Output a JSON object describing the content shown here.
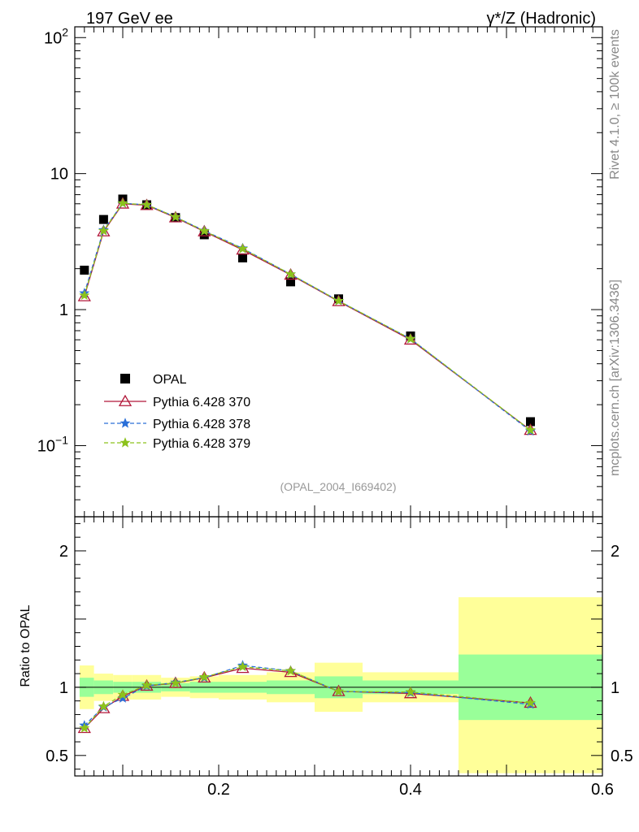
{
  "header": {
    "left": "197 GeV ee",
    "right": "γ*/Z (Hadronic)"
  },
  "side_labels": {
    "rivet": "Rivet 4.1.0, ≥ 100k events",
    "mcplots": "mcplots.cern.ch [arXiv:1306.3436]"
  },
  "analysis_tag": "(OPAL_2004_I669402)",
  "colors": {
    "data": "#000000",
    "p370": "#b2183a",
    "p378": "#2a6fd8",
    "p379": "#8cc21c",
    "band_inner": "#99ff99",
    "band_outer": "#ffff99"
  },
  "chart_data": [
    {
      "type": "scatter",
      "panel": "main",
      "yscale": "log",
      "xlim": [
        0.05,
        0.6
      ],
      "ylim": [
        0.03,
        120
      ],
      "ytick_labels": [
        {
          "value": 0.1,
          "base": "10",
          "exp": "−1"
        },
        {
          "value": 1,
          "base": "1",
          "exp": ""
        },
        {
          "value": 10,
          "base": "10",
          "exp": ""
        },
        {
          "value": 100,
          "base": "10",
          "exp": "2"
        }
      ],
      "x": [
        0.06,
        0.08,
        0.1,
        0.125,
        0.155,
        0.185,
        0.225,
        0.275,
        0.325,
        0.4,
        0.525
      ],
      "series": [
        {
          "name": "OPAL",
          "style": "square",
          "values": [
            1.95,
            4.6,
            6.5,
            5.9,
            4.75,
            3.55,
            2.4,
            1.6,
            1.2,
            0.64,
            0.15
          ]
        },
        {
          "name": "Pythia 6.428 370",
          "style": "triangle-line",
          "values": [
            1.25,
            3.75,
            6.0,
            5.85,
            4.75,
            3.75,
            2.75,
            1.8,
            1.15,
            0.6,
            0.13
          ]
        },
        {
          "name": "Pythia 6.428 378",
          "style": "star-dashed",
          "values": [
            1.32,
            3.85,
            6.05,
            5.9,
            4.8,
            3.8,
            2.82,
            1.82,
            1.16,
            0.61,
            0.128
          ]
        },
        {
          "name": "Pythia 6.428 379",
          "style": "star-dashed",
          "values": [
            1.27,
            3.8,
            6.05,
            5.9,
            4.8,
            3.78,
            2.8,
            1.82,
            1.16,
            0.61,
            0.13
          ]
        }
      ],
      "legend_position": "left"
    },
    {
      "type": "line",
      "panel": "ratio",
      "ylabel": "Ratio to OPAL",
      "xlim": [
        0.05,
        0.6
      ],
      "ylim": [
        0.35,
        2.25
      ],
      "xtick_labels": [
        {
          "value": 0.2,
          "label": "0.2"
        },
        {
          "value": 0.4,
          "label": "0.4"
        },
        {
          "value": 0.6,
          "label": "0.6"
        }
      ],
      "ytick_labels": [
        {
          "value": 0.5,
          "label": "0.5"
        },
        {
          "value": 1,
          "label": "1"
        },
        {
          "value": 2,
          "label": "2"
        }
      ],
      "x": [
        0.06,
        0.08,
        0.1,
        0.125,
        0.155,
        0.185,
        0.225,
        0.275,
        0.325,
        0.4,
        0.525
      ],
      "bands": [
        {
          "x0": 0.05,
          "x1": 0.07,
          "inner": [
            0.93,
            1.07
          ],
          "outer": [
            0.84,
            1.16
          ]
        },
        {
          "x0": 0.07,
          "x1": 0.09,
          "inner": [
            0.95,
            1.05
          ],
          "outer": [
            0.9,
            1.1
          ]
        },
        {
          "x0": 0.09,
          "x1": 0.11,
          "inner": [
            0.96,
            1.04
          ],
          "outer": [
            0.91,
            1.09
          ]
        },
        {
          "x0": 0.11,
          "x1": 0.14,
          "inner": [
            0.96,
            1.04
          ],
          "outer": [
            0.91,
            1.09
          ]
        },
        {
          "x0": 0.14,
          "x1": 0.17,
          "inner": [
            0.97,
            1.03
          ],
          "outer": [
            0.93,
            1.07
          ]
        },
        {
          "x0": 0.17,
          "x1": 0.2,
          "inner": [
            0.96,
            1.04
          ],
          "outer": [
            0.92,
            1.08
          ]
        },
        {
          "x0": 0.2,
          "x1": 0.25,
          "inner": [
            0.96,
            1.04
          ],
          "outer": [
            0.91,
            1.09
          ]
        },
        {
          "x0": 0.25,
          "x1": 0.3,
          "inner": [
            0.95,
            1.05
          ],
          "outer": [
            0.89,
            1.11
          ]
        },
        {
          "x0": 0.3,
          "x1": 0.35,
          "inner": [
            0.92,
            1.08
          ],
          "outer": [
            0.82,
            1.18
          ]
        },
        {
          "x0": 0.35,
          "x1": 0.45,
          "inner": [
            0.95,
            1.05
          ],
          "outer": [
            0.89,
            1.11
          ]
        },
        {
          "x0": 0.45,
          "x1": 0.6,
          "inner": [
            0.76,
            1.24
          ],
          "outer": [
            0.37,
            1.66
          ]
        }
      ],
      "series": [
        {
          "name": "Pythia 6.428 370",
          "values": [
            0.7,
            0.845,
            0.935,
            1.01,
            1.03,
            1.07,
            1.14,
            1.11,
            0.97,
            0.955,
            0.885
          ]
        },
        {
          "name": "Pythia 6.428 378",
          "values": [
            0.72,
            0.855,
            0.92,
            1.01,
            1.035,
            1.07,
            1.16,
            1.12,
            0.97,
            0.96,
            0.875
          ]
        },
        {
          "name": "Pythia 6.428 379",
          "values": [
            0.7,
            0.86,
            0.945,
            1.015,
            1.03,
            1.075,
            1.15,
            1.12,
            0.97,
            0.965,
            0.885
          ]
        }
      ]
    }
  ]
}
